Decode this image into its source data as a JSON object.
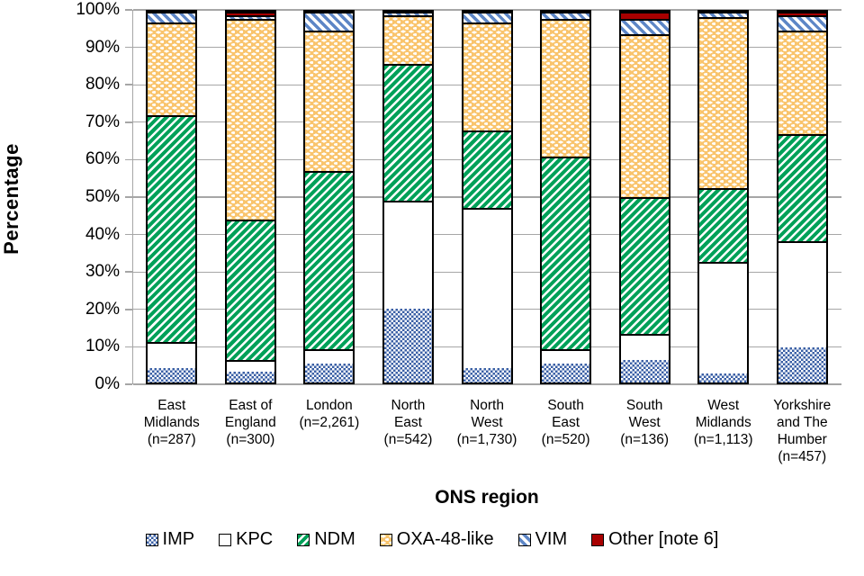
{
  "chart_data": {
    "type": "bar",
    "variant": "stacked-100-percent",
    "title": "",
    "xlabel": "ONS region",
    "ylabel": "Percentage",
    "ylim": [
      0,
      100
    ],
    "grid": true,
    "legend_position": "bottom",
    "yticks": [
      "0%",
      "10%",
      "20%",
      "30%",
      "40%",
      "50%",
      "60%",
      "70%",
      "80%",
      "90%",
      "100%"
    ],
    "categories": [
      {
        "label": "East Midlands (n=287)",
        "lines": [
          "East",
          "Midlands",
          "(n=287)"
        ]
      },
      {
        "label": "East of England (n=300)",
        "lines": [
          "East of",
          "England",
          "(n=300)"
        ]
      },
      {
        "label": "London (n=2,261)",
        "lines": [
          "London",
          "(n=2,261)"
        ]
      },
      {
        "label": "North East (n=542)",
        "lines": [
          "North",
          "East",
          "(n=542)"
        ]
      },
      {
        "label": "North West (n=1,730)",
        "lines": [
          "North",
          "West",
          "(n=1,730)"
        ]
      },
      {
        "label": "South East (n=520)",
        "lines": [
          "South",
          "East",
          "(n=520)"
        ]
      },
      {
        "label": "South West (n=136)",
        "lines": [
          "South",
          "West",
          "(n=136)"
        ]
      },
      {
        "label": "West Midlands (n=1,113)",
        "lines": [
          "West",
          "Midlands",
          "(n=1,113)"
        ]
      },
      {
        "label": "Yorkshire and The Humber (n=457)",
        "lines": [
          "Yorkshire",
          "and The",
          "Humber",
          "(n=457)"
        ]
      }
    ],
    "series": [
      {
        "key": "IMP",
        "name": "IMP",
        "values": [
          4,
          3,
          5,
          20,
          4,
          5,
          6,
          2.5,
          9.5
        ]
      },
      {
        "key": "KPC",
        "name": "KPC",
        "values": [
          7,
          3,
          4,
          29,
          43,
          4,
          7,
          30,
          28.5
        ]
      },
      {
        "key": "NDM",
        "name": "NDM",
        "values": [
          61,
          38,
          48,
          37,
          21,
          52,
          37,
          20,
          29
        ]
      },
      {
        "key": "OXA48",
        "name": "OXA-48-like",
        "values": [
          25,
          54,
          38,
          13,
          29,
          37,
          44,
          46,
          28
        ]
      },
      {
        "key": "VIM",
        "name": "VIM",
        "values": [
          3,
          1,
          5,
          1,
          3,
          2,
          4,
          1.5,
          4
        ]
      },
      {
        "key": "OTHER",
        "name": "Other [note 6]",
        "values": [
          0,
          1,
          0,
          0,
          0,
          0,
          2,
          0,
          1
        ]
      }
    ],
    "colors": {
      "IMP": "#3a5fa5",
      "KPC": "#ffffff",
      "NDM": "#00a159",
      "OXA48": "#f9c46d",
      "VIM": "#5d86c6",
      "OTHER": "#a80000",
      "gridline": "#a6a6a6",
      "bar_outline": "#000000"
    }
  }
}
